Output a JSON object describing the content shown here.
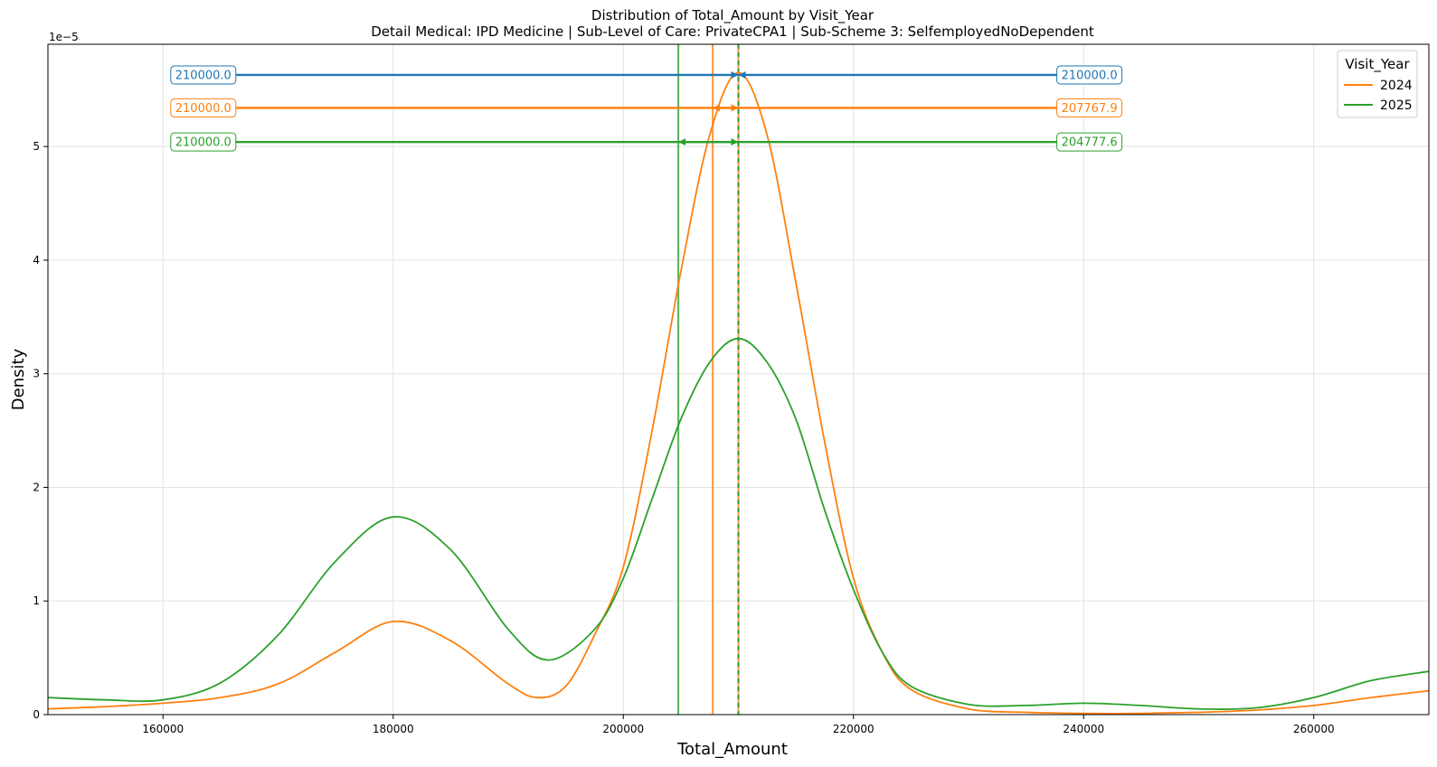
{
  "chart_data": {
    "type": "line",
    "title": "Distribution of Total_Amount by Visit_Year",
    "subtitle": "Detail Medical: IPD Medicine | Sub-Level of Care: PrivateCPA1 | Sub-Scheme 3: SelfemployedNoDependent",
    "xlabel": "Total_Amount",
    "ylabel": "Density",
    "y_offset_label": "1e−5",
    "xlim": [
      150000,
      270000
    ],
    "ylim": [
      0,
      5.9
    ],
    "x_ticks": [
      160000,
      180000,
      200000,
      220000,
      240000,
      260000
    ],
    "y_ticks": [
      0,
      1,
      2,
      3,
      4,
      5
    ],
    "grid": true,
    "legend": {
      "title": "Visit_Year",
      "placement": "top-right"
    },
    "series": [
      {
        "name": "2024",
        "color": "#ff7f0e",
        "x": [
          150000,
          155000,
          160000,
          165000,
          170000,
          175000,
          180000,
          185000,
          190000,
          192500,
          195000,
          197500,
          200000,
          202500,
          205000,
          207500,
          210000,
          212500,
          215000,
          217500,
          220000,
          222500,
          225000,
          230000,
          235000,
          240000,
          245000,
          250000,
          255000,
          260000,
          265000,
          270000
        ],
        "y": [
          0.05,
          0.07,
          0.1,
          0.15,
          0.27,
          0.55,
          0.82,
          0.65,
          0.27,
          0.15,
          0.25,
          0.7,
          1.3,
          2.5,
          3.9,
          5.1,
          5.65,
          5.1,
          3.8,
          2.4,
          1.2,
          0.55,
          0.22,
          0.05,
          0.02,
          0.01,
          0.01,
          0.02,
          0.04,
          0.08,
          0.15,
          0.21
        ]
      },
      {
        "name": "2025",
        "color": "#2ca02c",
        "x": [
          150000,
          155000,
          160000,
          165000,
          170000,
          175000,
          180000,
          185000,
          190000,
          193500,
          197500,
          200000,
          202500,
          205000,
          207500,
          210000,
          212500,
          215000,
          217500,
          220000,
          222500,
          225000,
          230000,
          235000,
          240000,
          245000,
          250000,
          255000,
          260000,
          265000,
          270000
        ],
        "y": [
          0.15,
          0.13,
          0.13,
          0.28,
          0.7,
          1.35,
          1.74,
          1.45,
          0.75,
          0.48,
          0.75,
          1.2,
          1.9,
          2.6,
          3.1,
          3.31,
          3.1,
          2.6,
          1.8,
          1.1,
          0.55,
          0.25,
          0.09,
          0.08,
          0.1,
          0.08,
          0.05,
          0.06,
          0.15,
          0.3,
          0.38
        ]
      }
    ],
    "reference_lines": [
      {
        "x": 204777.6,
        "color": "#2ca02c",
        "style": "solid"
      },
      {
        "x": 207767.9,
        "color": "#ff7f0e",
        "style": "solid"
      },
      {
        "x": 210000,
        "color": "#ff7f0e",
        "style": "solid"
      },
      {
        "x": 210000,
        "color": "#1f77b4",
        "style": "dashed"
      },
      {
        "x": 210000,
        "color": "#2ca02c",
        "style": "dashed"
      }
    ],
    "annotations": [
      {
        "color": "#1f77b4",
        "y": 5.63,
        "left_label": "210000.0",
        "right_label": "210000.0",
        "left_target": 210000,
        "right_target": 210000
      },
      {
        "color": "#ff7f0e",
        "y": 5.34,
        "left_label": "210000.0",
        "right_label": "207767.9",
        "left_target": 210000,
        "right_target": 207767.9
      },
      {
        "color": "#2ca02c",
        "y": 5.04,
        "left_label": "210000.0",
        "right_label": "204777.6",
        "left_target": 210000,
        "right_target": 204777.6
      }
    ],
    "annotation_label_x": [
      163500,
      240500
    ]
  }
}
